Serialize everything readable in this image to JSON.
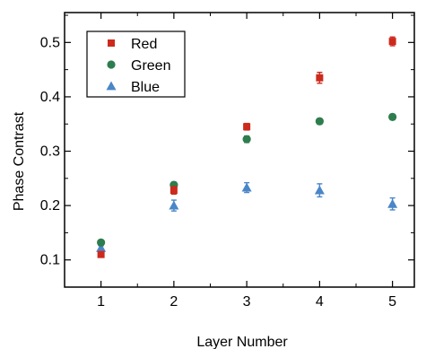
{
  "chart_data": {
    "type": "scatter",
    "xlabel": "Layer Number",
    "ylabel": "Phase Contrast",
    "xlim": [
      0.5,
      5.3
    ],
    "ylim": [
      0.05,
      0.555
    ],
    "x": [
      1,
      2,
      3,
      4,
      5
    ],
    "xticks": [
      1,
      2,
      3,
      4,
      5
    ],
    "yticks": [
      0.1,
      0.2,
      0.3,
      0.4,
      0.5
    ],
    "x_tick_labels": [
      "1",
      "2",
      "3",
      "4",
      "5"
    ],
    "y_tick_labels": [
      "0.1",
      "0.2",
      "0.3",
      "0.4",
      "0.5"
    ],
    "grid": false,
    "legend_position": "top-left",
    "series": [
      {
        "name": "Red",
        "color": "#cc2a1c",
        "marker": "square",
        "values": [
          0.11,
          0.228,
          0.345,
          0.435,
          0.502
        ],
        "errors": [
          0.004,
          0.007,
          0.006,
          0.01,
          0.008
        ]
      },
      {
        "name": "Green",
        "color": "#2e7d4e",
        "marker": "circle",
        "values": [
          0.132,
          0.238,
          0.322,
          0.355,
          0.363
        ],
        "errors": [
          0.004,
          0.005,
          0.006,
          0.005,
          0.005
        ]
      },
      {
        "name": "Blue",
        "color": "#4a86c8",
        "marker": "triangle",
        "values": [
          0.122,
          0.2,
          0.233,
          0.228,
          0.203
        ],
        "errors": [
          0.004,
          0.01,
          0.009,
          0.012,
          0.011
        ]
      }
    ]
  }
}
